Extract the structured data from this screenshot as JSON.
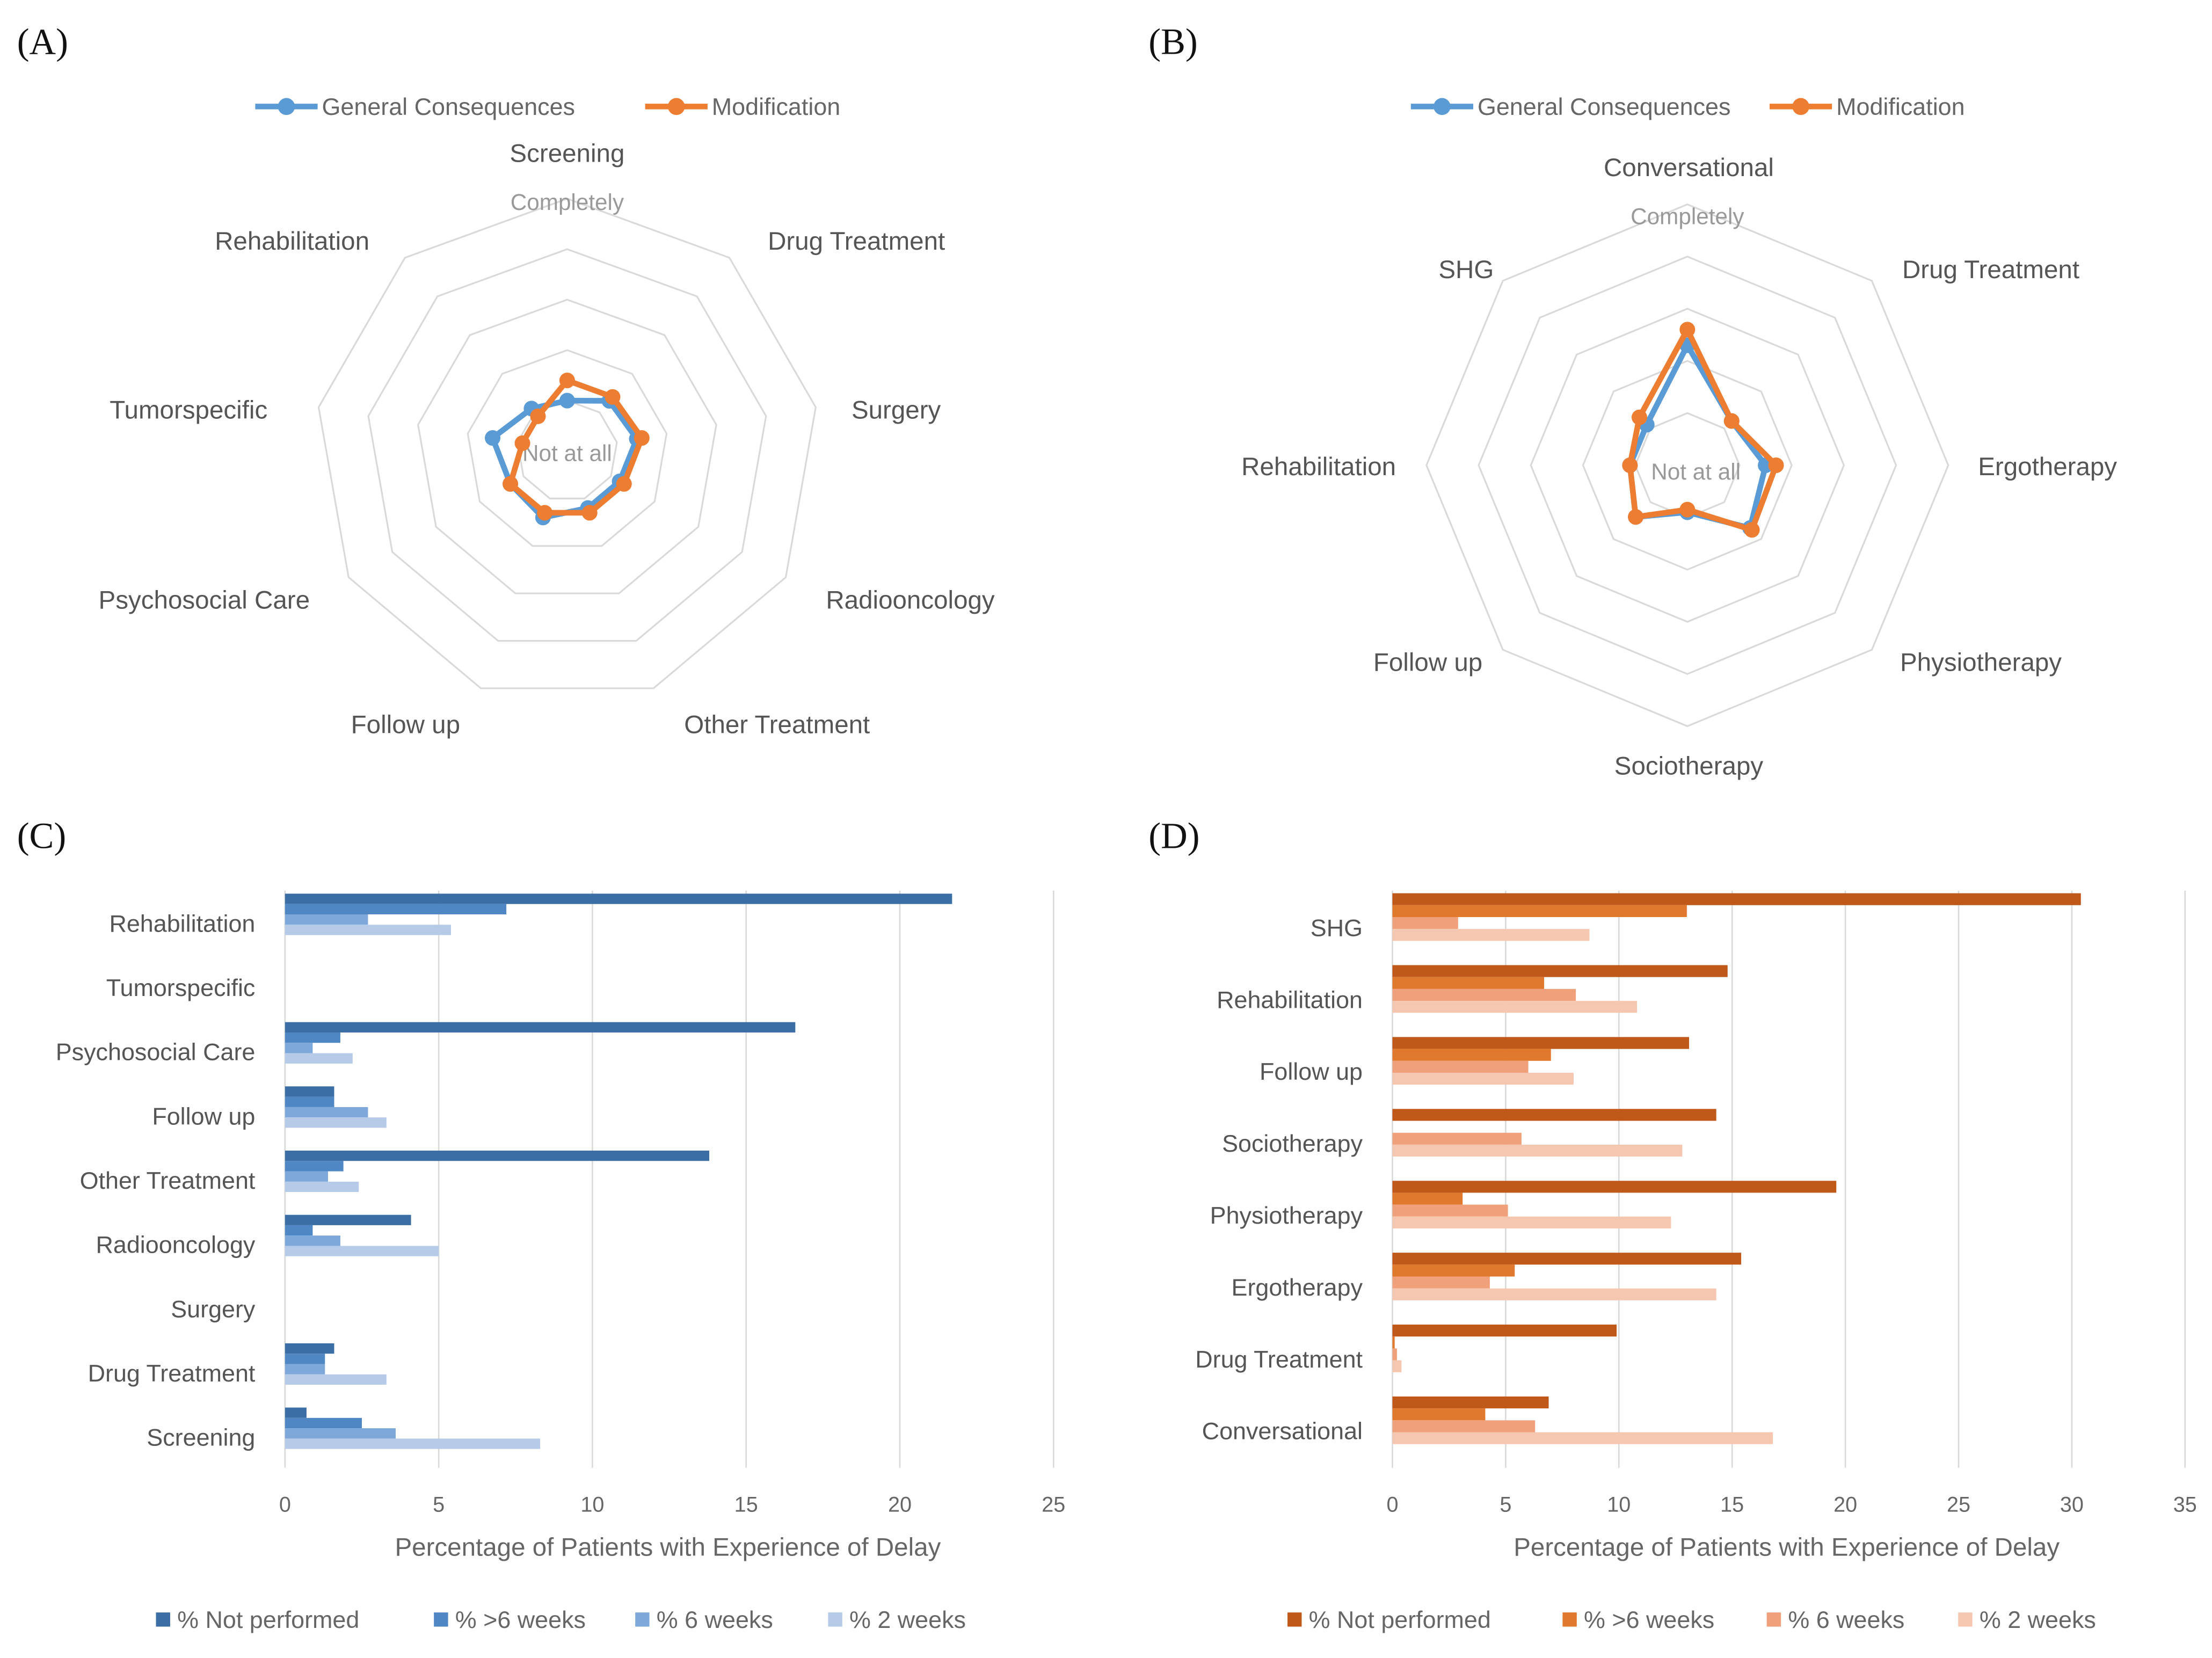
{
  "colors": {
    "general": "#5b9bd5",
    "modification": "#ed7d31",
    "c_series": [
      "#3b6ea5",
      "#4f86c4",
      "#7ea8da",
      "#b5cbe8"
    ],
    "d_series": [
      "#c0581a",
      "#e0782e",
      "#f0a07a",
      "#f6c7b0"
    ]
  },
  "chart_data": [
    {
      "panel": "(A)",
      "type": "radar",
      "legend": [
        "General Consequences",
        "Modification"
      ],
      "scale_labels": {
        "min": "Not at all",
        "max": "Completely"
      },
      "range": [
        0,
        5
      ],
      "axes": [
        "Screening",
        "Drug Treatment",
        "Surgery",
        "Radiooncology",
        "Other Treatment",
        "Follow up",
        "Psychosocial Care",
        "Tumorspecific",
        "Rehabilitation"
      ],
      "series": [
        {
          "name": "General Consequences",
          "values": [
            1.0,
            1.3,
            1.4,
            1.2,
            1.2,
            1.4,
            1.3,
            1.5,
            1.1
          ]
        },
        {
          "name": "Modification",
          "values": [
            1.4,
            1.4,
            1.5,
            1.3,
            1.3,
            1.3,
            1.3,
            0.9,
            0.9
          ]
        }
      ]
    },
    {
      "panel": "(B)",
      "type": "radar",
      "legend": [
        "General Consequences",
        "Modification"
      ],
      "scale_labels": {
        "min": "Not at all",
        "max": "Completely"
      },
      "range": [
        0,
        5
      ],
      "axes": [
        "Conversational",
        "Drug Treatment",
        "Ergotherapy",
        "Physiotherapy",
        "Sociotherapy",
        "Follow up",
        "Rehabilitation",
        "SHG"
      ],
      "series": [
        {
          "name": "General Consequences",
          "values": [
            2.3,
            1.2,
            1.5,
            1.7,
            0.9,
            1.4,
            1.1,
            1.1
          ]
        },
        {
          "name": "Modification",
          "values": [
            2.6,
            1.2,
            1.7,
            1.75,
            0.85,
            1.4,
            1.1,
            1.3
          ]
        }
      ]
    },
    {
      "panel": "(C)",
      "type": "bar",
      "orientation": "horizontal",
      "categories": [
        "Rehabilitation",
        "Tumorspecific",
        "Psychosocial Care",
        "Follow up",
        "Other Treatment",
        "Radiooncology",
        "Surgery",
        "Drug Treatment",
        "Screening"
      ],
      "series": [
        {
          "name": "% Not performed",
          "values": [
            21.7,
            0,
            16.6,
            1.6,
            13.8,
            4.1,
            0,
            1.6,
            0.7
          ]
        },
        {
          "name": "% >6 weeks",
          "values": [
            7.2,
            0,
            1.8,
            1.6,
            1.9,
            0.9,
            0,
            1.3,
            2.5
          ]
        },
        {
          "name": "% 6 weeks",
          "values": [
            2.7,
            0,
            0.9,
            2.7,
            1.4,
            1.8,
            0,
            1.3,
            3.6
          ]
        },
        {
          "name": "% 2 weeks",
          "values": [
            5.4,
            0,
            2.2,
            3.3,
            2.4,
            5.0,
            0,
            3.3,
            8.3
          ]
        }
      ],
      "xlabel": "Percentage of Patients with Experience of Delay",
      "xlim": [
        0,
        25
      ],
      "xticks": [
        "0",
        "5",
        "10",
        "15",
        "20",
        "25"
      ],
      "grid": true,
      "legend_position": "bottom"
    },
    {
      "panel": "(D)",
      "type": "bar",
      "orientation": "horizontal",
      "categories": [
        "SHG",
        "Rehabilitation",
        "Follow up",
        "Sociotherapy",
        "Physiotherapy",
        "Ergotherapy",
        "Drug Treatment",
        "Conversational"
      ],
      "series": [
        {
          "name": "% Not performed",
          "values": [
            30.4,
            14.8,
            13.1,
            14.3,
            19.6,
            15.4,
            9.9,
            6.9
          ]
        },
        {
          "name": "% >6 weeks",
          "values": [
            13.0,
            6.7,
            7.0,
            0,
            3.1,
            5.4,
            0.1,
            4.1
          ]
        },
        {
          "name": "% 6 weeks",
          "values": [
            2.9,
            8.1,
            6.0,
            5.7,
            5.1,
            4.3,
            0.2,
            6.3
          ]
        },
        {
          "name": "% 2 weeks",
          "values": [
            8.7,
            10.8,
            8.0,
            12.8,
            12.3,
            14.3,
            0.4,
            16.8
          ]
        }
      ],
      "xlabel": "Percentage of Patients with Experience of Delay",
      "xlim": [
        0,
        35
      ],
      "xticks": [
        "0",
        "5",
        "10",
        "15",
        "20",
        "25",
        "30",
        "35"
      ],
      "grid": true,
      "legend_position": "bottom"
    }
  ]
}
